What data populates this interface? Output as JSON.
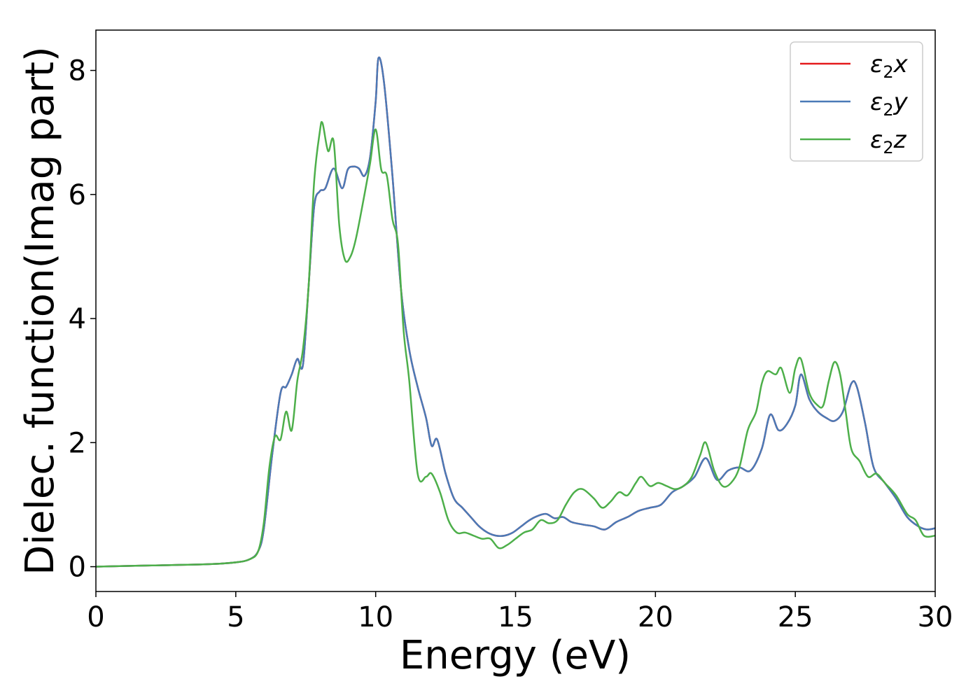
{
  "chart_data": {
    "type": "line",
    "xlabel": "Energy (eV)",
    "ylabel": "Dielec. function(Imag part)",
    "xlim": [
      0,
      30
    ],
    "ylim": [
      -0.4,
      8.65
    ],
    "x_ticks": [
      0,
      5,
      10,
      15,
      20,
      25,
      30
    ],
    "y_ticks": [
      0,
      2,
      4,
      6,
      8
    ],
    "grid": false,
    "legend_position": "top-right",
    "legend": {
      "sym": "ε",
      "sub": "2",
      "entries": [
        {
          "suffix": "x",
          "color": "#e41a1c"
        },
        {
          "suffix": "y",
          "color": "#4a7ab7"
        },
        {
          "suffix": "z",
          "color": "#4daf4a"
        }
      ]
    },
    "series": [
      {
        "color": "#e41a1c",
        "x": [
          0,
          2,
          4,
          5,
          5.5,
          5.8,
          6.0,
          6.3,
          6.6,
          6.8,
          7.0,
          7.2,
          7.4,
          7.6,
          7.8,
          8.0,
          8.2,
          8.5,
          8.8,
          9.0,
          9.2,
          9.4,
          9.6,
          9.8,
          10.0,
          10.1,
          10.3,
          10.6,
          10.9,
          11.2,
          11.5,
          11.8,
          12.0,
          12.2,
          12.5,
          12.8,
          13.1,
          13.4,
          13.7,
          14.0,
          14.3,
          14.6,
          14.9,
          15.2,
          15.5,
          15.8,
          16.1,
          16.4,
          16.7,
          17.0,
          17.4,
          17.8,
          18.2,
          18.6,
          19.0,
          19.4,
          19.8,
          20.2,
          20.6,
          21.0,
          21.4,
          21.8,
          22.2,
          22.6,
          23.0,
          23.4,
          23.8,
          24.1,
          24.4,
          24.7,
          25.0,
          25.2,
          25.5,
          25.8,
          26.1,
          26.4,
          26.7,
          27.0,
          27.2,
          27.5,
          27.8,
          28.2,
          28.6,
          29.0,
          29.4,
          29.7,
          30.0
        ],
        "y": [
          0.0,
          0.02,
          0.04,
          0.07,
          0.12,
          0.25,
          0.6,
          1.8,
          2.8,
          2.9,
          3.1,
          3.35,
          3.25,
          4.5,
          5.8,
          6.05,
          6.1,
          6.42,
          6.1,
          6.4,
          6.45,
          6.42,
          6.3,
          6.6,
          7.5,
          8.2,
          7.8,
          6.3,
          4.5,
          3.5,
          2.9,
          2.4,
          1.95,
          2.05,
          1.5,
          1.1,
          0.95,
          0.8,
          0.65,
          0.55,
          0.5,
          0.5,
          0.55,
          0.65,
          0.75,
          0.82,
          0.85,
          0.78,
          0.8,
          0.72,
          0.68,
          0.65,
          0.6,
          0.72,
          0.8,
          0.9,
          0.95,
          1.0,
          1.2,
          1.3,
          1.45,
          1.75,
          1.4,
          1.55,
          1.6,
          1.55,
          1.9,
          2.45,
          2.2,
          2.3,
          2.6,
          3.1,
          2.7,
          2.5,
          2.4,
          2.35,
          2.5,
          2.95,
          2.9,
          2.3,
          1.6,
          1.35,
          1.1,
          0.8,
          0.65,
          0.6,
          0.62
        ]
      },
      {
        "color": "#4a7ab7",
        "x": [
          0,
          2,
          4,
          5,
          5.5,
          5.8,
          6.0,
          6.3,
          6.6,
          6.8,
          7.0,
          7.2,
          7.4,
          7.6,
          7.8,
          8.0,
          8.2,
          8.5,
          8.8,
          9.0,
          9.2,
          9.4,
          9.6,
          9.8,
          10.0,
          10.1,
          10.3,
          10.6,
          10.9,
          11.2,
          11.5,
          11.8,
          12.0,
          12.2,
          12.5,
          12.8,
          13.1,
          13.4,
          13.7,
          14.0,
          14.3,
          14.6,
          14.9,
          15.2,
          15.5,
          15.8,
          16.1,
          16.4,
          16.7,
          17.0,
          17.4,
          17.8,
          18.2,
          18.6,
          19.0,
          19.4,
          19.8,
          20.2,
          20.6,
          21.0,
          21.4,
          21.8,
          22.2,
          22.6,
          23.0,
          23.4,
          23.8,
          24.1,
          24.4,
          24.7,
          25.0,
          25.2,
          25.5,
          25.8,
          26.1,
          26.4,
          26.7,
          27.0,
          27.2,
          27.5,
          27.8,
          28.2,
          28.6,
          29.0,
          29.4,
          29.7,
          30.0
        ],
        "y": [
          0.0,
          0.02,
          0.04,
          0.07,
          0.12,
          0.25,
          0.6,
          1.8,
          2.8,
          2.9,
          3.1,
          3.35,
          3.25,
          4.5,
          5.8,
          6.05,
          6.1,
          6.42,
          6.1,
          6.4,
          6.45,
          6.42,
          6.3,
          6.6,
          7.5,
          8.2,
          7.8,
          6.3,
          4.5,
          3.5,
          2.9,
          2.4,
          1.95,
          2.05,
          1.5,
          1.1,
          0.95,
          0.8,
          0.65,
          0.55,
          0.5,
          0.5,
          0.55,
          0.65,
          0.75,
          0.82,
          0.85,
          0.78,
          0.8,
          0.72,
          0.68,
          0.65,
          0.6,
          0.72,
          0.8,
          0.9,
          0.95,
          1.0,
          1.2,
          1.3,
          1.45,
          1.75,
          1.4,
          1.55,
          1.6,
          1.55,
          1.9,
          2.45,
          2.2,
          2.3,
          2.6,
          3.1,
          2.7,
          2.5,
          2.4,
          2.35,
          2.5,
          2.95,
          2.9,
          2.3,
          1.6,
          1.35,
          1.1,
          0.8,
          0.65,
          0.6,
          0.62
        ]
      },
      {
        "color": "#4daf4a",
        "x": [
          0,
          2,
          4,
          5,
          5.5,
          5.8,
          6.0,
          6.2,
          6.4,
          6.6,
          6.8,
          7.0,
          7.2,
          7.4,
          7.6,
          7.8,
          8.0,
          8.1,
          8.3,
          8.5,
          8.7,
          8.9,
          9.1,
          9.3,
          9.6,
          9.8,
          10.0,
          10.2,
          10.4,
          10.6,
          10.8,
          11.0,
          11.2,
          11.5,
          11.8,
          12.0,
          12.3,
          12.6,
          12.9,
          13.2,
          13.5,
          13.8,
          14.1,
          14.4,
          14.7,
          15.0,
          15.3,
          15.6,
          15.9,
          16.2,
          16.5,
          16.8,
          17.1,
          17.4,
          17.8,
          18.1,
          18.4,
          18.7,
          19.0,
          19.3,
          19.5,
          19.8,
          20.1,
          20.4,
          20.7,
          21.0,
          21.3,
          21.6,
          21.8,
          22.1,
          22.4,
          22.7,
          23.0,
          23.3,
          23.6,
          23.8,
          24.0,
          24.3,
          24.5,
          24.8,
          25.0,
          25.2,
          25.5,
          25.8,
          26.0,
          26.2,
          26.4,
          26.6,
          26.8,
          27.0,
          27.3,
          27.6,
          27.9,
          28.2,
          28.6,
          29.0,
          29.3,
          29.6,
          30.0
        ],
        "y": [
          0.0,
          0.02,
          0.04,
          0.07,
          0.12,
          0.25,
          0.7,
          1.6,
          2.1,
          2.05,
          2.5,
          2.2,
          3.0,
          3.5,
          4.5,
          6.2,
          7.0,
          7.15,
          6.7,
          6.85,
          5.5,
          4.95,
          5.0,
          5.3,
          6.0,
          6.5,
          7.05,
          6.4,
          6.3,
          5.6,
          5.2,
          3.8,
          3.0,
          1.5,
          1.45,
          1.5,
          1.2,
          0.75,
          0.55,
          0.55,
          0.5,
          0.45,
          0.45,
          0.3,
          0.35,
          0.45,
          0.55,
          0.6,
          0.75,
          0.7,
          0.75,
          1.0,
          1.2,
          1.25,
          1.1,
          0.95,
          1.05,
          1.2,
          1.15,
          1.35,
          1.45,
          1.3,
          1.35,
          1.3,
          1.25,
          1.3,
          1.45,
          1.8,
          2.0,
          1.55,
          1.3,
          1.35,
          1.6,
          2.2,
          2.5,
          2.95,
          3.15,
          3.1,
          3.2,
          2.8,
          3.2,
          3.35,
          2.8,
          2.6,
          2.6,
          3.0,
          3.3,
          3.1,
          2.5,
          1.9,
          1.7,
          1.45,
          1.5,
          1.35,
          1.15,
          0.85,
          0.75,
          0.5,
          0.5
        ]
      }
    ]
  }
}
